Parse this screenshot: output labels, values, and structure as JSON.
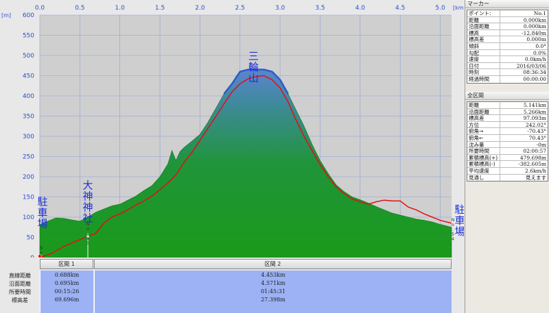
{
  "chart_data": {
    "type": "area",
    "x_unit": "[km]",
    "y_unit": "[m]",
    "xlim": [
      0,
      5.141
    ],
    "ylim": [
      0,
      600
    ],
    "x_ticks": [
      0.0,
      0.5,
      1.0,
      1.5,
      2.0,
      2.5,
      3.0,
      3.5,
      4.0,
      4.5,
      5.0
    ],
    "x_tick_labels": [
      "0.0",
      "0.5",
      "1.0",
      "1.5",
      "2.0",
      "2.5",
      "3.0",
      "3.5",
      "4.0",
      "4.5",
      "5.0"
    ],
    "y_ticks": [
      0,
      50,
      100,
      150,
      200,
      250,
      300,
      350,
      400,
      450,
      500,
      550,
      600
    ],
    "y_tick_labels": [
      "0",
      "50",
      "100",
      "150",
      "200",
      "250",
      "300",
      "350",
      "400",
      "450",
      "500",
      "550",
      "600"
    ],
    "grid": true,
    "series": [
      {
        "color": "#1a9a1a",
        "x": [
          0.0,
          0.1,
          0.2,
          0.3,
          0.4,
          0.5,
          0.6,
          0.7,
          0.8,
          0.9,
          1.0,
          1.1,
          1.2,
          1.3,
          1.4,
          1.5,
          1.6,
          1.65,
          1.7,
          1.75,
          1.8,
          1.9,
          2.0,
          2.1,
          2.2,
          2.3,
          2.4,
          2.45,
          2.5,
          2.6,
          2.7,
          2.8,
          2.9,
          3.0,
          3.1,
          3.2,
          3.3,
          3.4,
          3.5,
          3.6,
          3.7,
          3.8,
          3.9,
          4.0,
          4.1,
          4.2,
          4.3,
          4.4,
          4.5,
          4.6,
          4.7,
          4.8,
          4.9,
          5.0,
          5.141
        ],
        "values": [
          80,
          90,
          98,
          97,
          93,
          90,
          100,
          112,
          120,
          128,
          132,
          142,
          152,
          166,
          178,
          200,
          232,
          265,
          240,
          262,
          272,
          288,
          305,
          335,
          370,
          405,
          430,
          448,
          460,
          465,
          465,
          465,
          460,
          440,
          405,
          365,
          325,
          280,
          240,
          208,
          180,
          163,
          150,
          143,
          135,
          126,
          118,
          110,
          105,
          100,
          95,
          92,
          88,
          82,
          75
        ]
      },
      {
        "color": "#2a5cc8",
        "x": [
          2.3,
          2.4,
          2.5,
          2.6,
          2.7,
          2.8,
          2.9,
          3.0,
          3.1
        ],
        "values": [
          405,
          430,
          460,
          465,
          465,
          465,
          460,
          440,
          405
        ]
      },
      {
        "color": "#e01010",
        "x": [
          0.0,
          0.15,
          0.3,
          0.45,
          0.6,
          0.7,
          0.8,
          0.9,
          1.0,
          1.1,
          1.2,
          1.3,
          1.4,
          1.5,
          1.6,
          1.7,
          1.8,
          1.9,
          2.0,
          2.1,
          2.2,
          2.3,
          2.4,
          2.5,
          2.6,
          2.7,
          2.8,
          2.9,
          3.0,
          3.1,
          3.2,
          3.3,
          3.4,
          3.5,
          3.6,
          3.7,
          3.8,
          3.9,
          4.0,
          4.1,
          4.2,
          4.3,
          4.4,
          4.5,
          4.6,
          4.7,
          4.8,
          4.9,
          5.0,
          5.141
        ],
        "values": [
          0,
          10,
          28,
          40,
          52,
          60,
          85,
          100,
          108,
          118,
          130,
          140,
          152,
          168,
          185,
          205,
          235,
          260,
          290,
          320,
          350,
          380,
          410,
          430,
          442,
          448,
          450,
          440,
          420,
          385,
          340,
          300,
          265,
          230,
          200,
          175,
          158,
          145,
          138,
          132,
          138,
          142,
          140,
          140,
          125,
          118,
          108,
          100,
          92,
          85
        ]
      }
    ],
    "annotations": [
      {
        "text": "駐車場",
        "x": 0.0,
        "y": 130
      },
      {
        "text": "大神神社",
        "x": 0.6,
        "y": 170
      },
      {
        "text": "三輪山",
        "x": 2.6,
        "y": 490
      },
      {
        "text": "駐車場",
        "x": 5.141,
        "y": 110
      },
      {
        "text": "No.1",
        "x": 0.0,
        "y": 20
      },
      {
        "text": "No.15",
        "x": 0.6,
        "y": 80
      },
      {
        "text": "No.54",
        "x": 5.141,
        "y": 90
      }
    ]
  },
  "sections": {
    "row_labels": [
      "直線距離",
      "沿面距離",
      "所要時間",
      "標高差"
    ],
    "items": [
      {
        "name": "区間 1",
        "values": [
          "0.688km",
          "0.695km",
          "00:15:26",
          "69.696m"
        ]
      },
      {
        "name": "区間 2",
        "values": [
          "4.453km",
          "4.571km",
          "01:45:31",
          "27.398m"
        ]
      }
    ]
  },
  "marker_panel": {
    "title": "マーカー",
    "rows": [
      {
        "k": "ポイント:",
        "v": "No.1"
      },
      {
        "k": "距離",
        "v": "0.000km"
      },
      {
        "k": "沿面距離",
        "v": "0.000km"
      },
      {
        "k": "標高",
        "v": "-12.840m"
      },
      {
        "k": "標高差",
        "v": "0.000m"
      },
      {
        "k": "傾斜",
        "v": "0.0°"
      },
      {
        "k": "勾配",
        "v": "0.0%"
      },
      {
        "k": "速度",
        "v": "0.0km/h"
      },
      {
        "k": "日付",
        "v": "2016/03/06"
      },
      {
        "k": "時刻",
        "v": "08:36:34"
      },
      {
        "k": "経過時間",
        "v": "00:00:00"
      }
    ]
  },
  "all_panel": {
    "title": "全区間",
    "rows": [
      {
        "k": "距離",
        "v": "5.141km"
      },
      {
        "k": "沿面距離",
        "v": "5.266km"
      },
      {
        "k": "標高差",
        "v": "97.093m"
      },
      {
        "k": "方位",
        "v": "242.02°"
      },
      {
        "k": "俯角→",
        "v": "-70.43°"
      },
      {
        "k": "俯角←",
        "v": "70.43°"
      },
      {
        "k": "沈み量",
        "v": "-0m"
      },
      {
        "k": "所要時間",
        "v": "02:00:57"
      },
      {
        "k": "累積標高(+)",
        "v": "479.698m"
      },
      {
        "k": "累積標高(-)",
        "v": "-382.605m"
      },
      {
        "k": "平均速度",
        "v": "2.6km/h"
      },
      {
        "k": "見通し",
        "v": "見えます"
      }
    ]
  }
}
